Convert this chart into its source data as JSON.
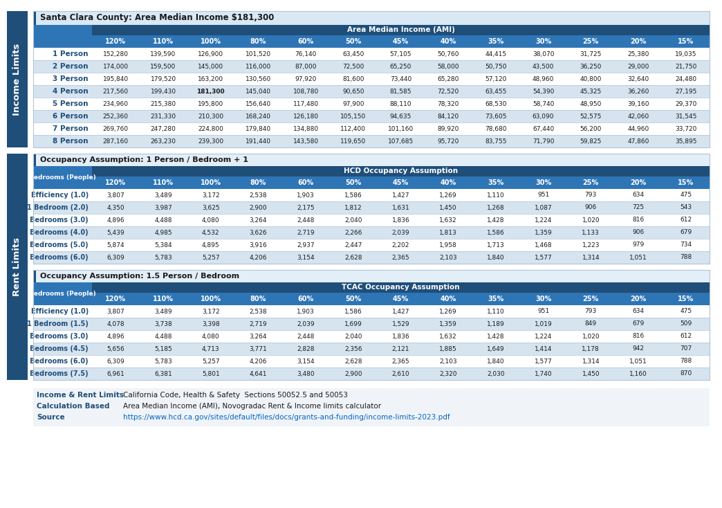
{
  "title": "Santa Clara County: Area Median Income $181,300",
  "ami_header": "Area Median Income (AMI)",
  "hcd_header": "HCD Occupancy Assumption",
  "tcac_header": "TCAC Occupancy Assumption",
  "occ1_label": "Occupancy Assumption: 1 Person / Bedroom + 1",
  "occ2_label": "Occupancy Assumption: 1.5 Person / Bedroom",
  "left_sidebar_income": "Income Limits",
  "left_sidebar_rent": "Rent Limits",
  "col_headers": [
    "120%",
    "110%",
    "100%",
    "80%",
    "60%",
    "50%",
    "45%",
    "40%",
    "35%",
    "30%",
    "25%",
    "20%",
    "15%"
  ],
  "income_row_labels": [
    "1 Person",
    "2 Person",
    "3 Person",
    "4 Person",
    "5 Person",
    "6 Person",
    "7 Person",
    "8 Person"
  ],
  "income_data": [
    [
      152280,
      139590,
      126900,
      101520,
      76140,
      63450,
      57105,
      50760,
      44415,
      38070,
      31725,
      25380,
      19035
    ],
    [
      174000,
      159500,
      145000,
      116000,
      87000,
      72500,
      65250,
      58000,
      50750,
      43500,
      36250,
      29000,
      21750
    ],
    [
      195840,
      179520,
      163200,
      130560,
      97920,
      81600,
      73440,
      65280,
      57120,
      48960,
      40800,
      32640,
      24480
    ],
    [
      217560,
      199430,
      181300,
      145040,
      108780,
      90650,
      81585,
      72520,
      63455,
      54390,
      45325,
      36260,
      27195
    ],
    [
      234960,
      215380,
      195800,
      156640,
      117480,
      97900,
      88110,
      78320,
      68530,
      58740,
      48950,
      39160,
      29370
    ],
    [
      252360,
      231330,
      210300,
      168240,
      126180,
      105150,
      94635,
      84120,
      73605,
      63090,
      52575,
      42060,
      31545
    ],
    [
      269760,
      247280,
      224800,
      179840,
      134880,
      112400,
      101160,
      89920,
      78680,
      67440,
      56200,
      44960,
      33720
    ],
    [
      287160,
      263230,
      239300,
      191440,
      143580,
      119650,
      107685,
      95720,
      83755,
      71790,
      59825,
      47860,
      35895
    ]
  ],
  "income_bold_cell": [
    3,
    2
  ],
  "hcd_row_labels": [
    "Efficiency (1.0)",
    "1 Bedroom (2.0)",
    "2 Bedrooms (3.0)",
    "3 Bedrooms (4.0)",
    "4 Bedrooms (5.0)",
    "5 Bedrooms (6.0)"
  ],
  "hcd_data": [
    [
      3807,
      3489,
      3172,
      2538,
      1903,
      1586,
      1427,
      1269,
      1110,
      951,
      793,
      634,
      475
    ],
    [
      4350,
      3987,
      3625,
      2900,
      2175,
      1812,
      1631,
      1450,
      1268,
      1087,
      906,
      725,
      543
    ],
    [
      4896,
      4488,
      4080,
      3264,
      2448,
      2040,
      1836,
      1632,
      1428,
      1224,
      1020,
      816,
      612
    ],
    [
      5439,
      4985,
      4532,
      3626,
      2719,
      2266,
      2039,
      1813,
      1586,
      1359,
      1133,
      906,
      679
    ],
    [
      5874,
      5384,
      4895,
      3916,
      2937,
      2447,
      2202,
      1958,
      1713,
      1468,
      1223,
      979,
      734
    ],
    [
      6309,
      5783,
      5257,
      4206,
      3154,
      2628,
      2365,
      2103,
      1840,
      1577,
      1314,
      1051,
      788
    ]
  ],
  "tcac_row_labels": [
    "Efficiency (1.0)",
    "1 Bedroom (1.5)",
    "2 Bedrooms (3.0)",
    "3 Bedrooms (4.5)",
    "4 Bedrooms (6.0)",
    "5 Bedrooms (7.5)"
  ],
  "tcac_data": [
    [
      3807,
      3489,
      3172,
      2538,
      1903,
      1586,
      1427,
      1269,
      1110,
      951,
      793,
      634,
      475
    ],
    [
      4078,
      3738,
      3398,
      2719,
      2039,
      1699,
      1529,
      1359,
      1189,
      1019,
      849,
      679,
      509
    ],
    [
      4896,
      4488,
      4080,
      3264,
      2448,
      2040,
      1836,
      1632,
      1428,
      1224,
      1020,
      816,
      612
    ],
    [
      5656,
      5185,
      4713,
      3771,
      2828,
      2356,
      2121,
      1885,
      1649,
      1414,
      1178,
      942,
      707
    ],
    [
      6309,
      5783,
      5257,
      4206,
      3154,
      2628,
      2365,
      2103,
      1840,
      1577,
      1314,
      1051,
      788
    ],
    [
      6961,
      6381,
      5801,
      4641,
      3480,
      2900,
      2610,
      2320,
      2030,
      1740,
      1450,
      1160,
      870
    ]
  ],
  "footer_labels": [
    "Income & Rent Limits",
    "Calculation Based",
    "Source"
  ],
  "footer_values": [
    "California Code, Health & Safety  Sections 50052.5 and 50053",
    "Area Median Income (AMI), Novogradac Rent & Income limits calculator",
    "https://www.hcd.ca.gov/sites/default/files/docs/grants-and-funding/income-limits-2023.pdf"
  ],
  "color_header_dark": "#1F4E79",
  "color_header_blue": "#2E75B6",
  "color_row_label_blue": "#1F4E79",
  "color_sidebar_blue": "#1F4E79",
  "color_white": "#FFFFFF",
  "color_title_bg": "#D9E8F5",
  "color_occ_bg": "#E2EEF8",
  "color_footer_bg": "#F0F4F8",
  "color_row_even": "#FFFFFF",
  "color_row_odd": "#D6E4F0",
  "color_footer_blue_label": "#1F4E79",
  "color_footer_link": "#0563C1",
  "color_border": "#B0C4D8"
}
